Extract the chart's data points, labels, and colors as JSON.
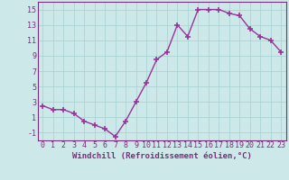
{
  "x": [
    0,
    1,
    2,
    3,
    4,
    5,
    6,
    7,
    8,
    9,
    10,
    11,
    12,
    13,
    14,
    15,
    16,
    17,
    18,
    19,
    20,
    21,
    22,
    23
  ],
  "y": [
    2.5,
    2.0,
    2.0,
    1.5,
    0.5,
    0.0,
    -0.5,
    -1.5,
    0.5,
    3.0,
    5.5,
    8.5,
    9.5,
    13.0,
    11.5,
    15.0,
    15.0,
    15.0,
    14.5,
    14.2,
    12.5,
    11.5,
    11.0,
    9.5
  ],
  "line_color": "#993399",
  "marker": "+",
  "markersize": 4,
  "markeredgewidth": 1.2,
  "linewidth": 1.0,
  "bg_color": "#cce8e8",
  "grid_color": "#b0d8d8",
  "xlabel": "Windchill (Refroidissement éolien,°C)",
  "xlabel_fontsize": 6.5,
  "tick_fontsize": 6,
  "xlim": [
    -0.5,
    23.5
  ],
  "ylim": [
    -2.0,
    16.0
  ],
  "yticks": [
    -1,
    1,
    3,
    5,
    7,
    9,
    11,
    13,
    15
  ],
  "xticks": [
    0,
    1,
    2,
    3,
    4,
    5,
    6,
    7,
    8,
    9,
    10,
    11,
    12,
    13,
    14,
    15,
    16,
    17,
    18,
    19,
    20,
    21,
    22,
    23
  ],
  "tick_color": "#7a2e7a",
  "axis_color": "#7a2e7a",
  "grid_color_white": "#c8e4e4",
  "spine_color": "#7a2e7a"
}
